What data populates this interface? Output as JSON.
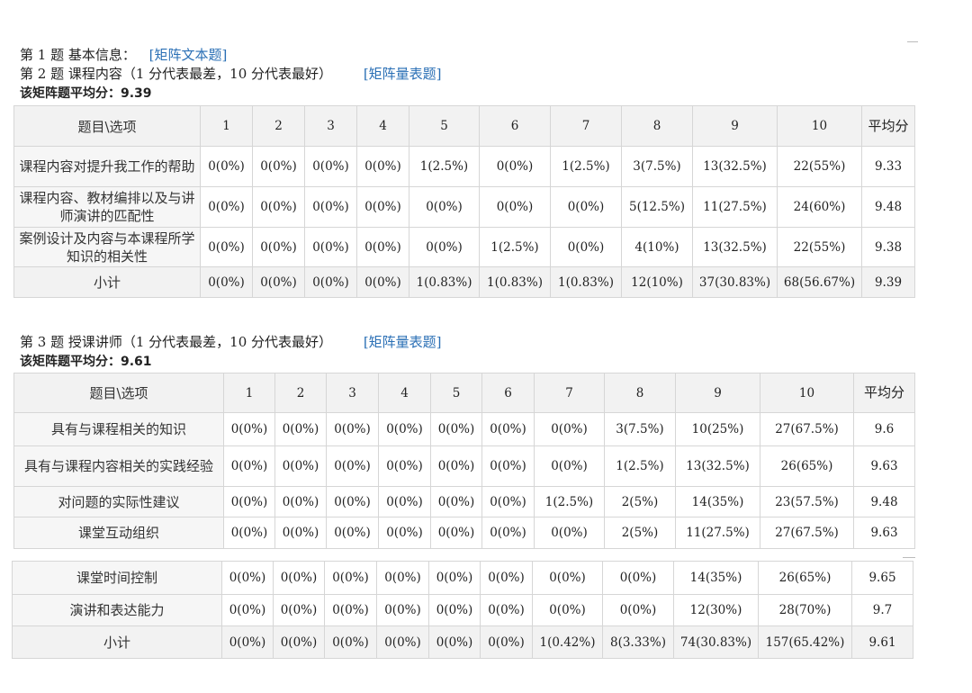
{
  "q1": {
    "text": "第 1 题  基本信息：",
    "link": "[矩阵文本题]"
  },
  "q2": {
    "text": "第 2 题  课程内容（1 分代表最差，10 分代表最好）",
    "link": "[矩阵量表题]",
    "avg_line": "该矩阵题平均分：9.39",
    "header": {
      "label": "题目\\选项",
      "options": [
        "1",
        "2",
        "3",
        "4",
        "5",
        "6",
        "7",
        "8",
        "9",
        "10"
      ],
      "avg": "平均分"
    },
    "rows": [
      {
        "label": "课程内容对提升我工作的帮助",
        "cells": [
          "0(0%)",
          "0(0%)",
          "0(0%)",
          "0(0%)",
          "1(2.5%)",
          "0(0%)",
          "1(2.5%)",
          "3(7.5%)",
          "13(32.5%)",
          "22(55%)"
        ],
        "avg": "9.33"
      },
      {
        "label": "课程内容、教材编排以及与讲师演讲的匹配性",
        "cells": [
          "0(0%)",
          "0(0%)",
          "0(0%)",
          "0(0%)",
          "0(0%)",
          "0(0%)",
          "0(0%)",
          "5(12.5%)",
          "11(27.5%)",
          "24(60%)"
        ],
        "avg": "9.48"
      },
      {
        "label": "案例设计及内容与本课程所学知识的相关性",
        "cells": [
          "0(0%)",
          "0(0%)",
          "0(0%)",
          "0(0%)",
          "0(0%)",
          "1(2.5%)",
          "0(0%)",
          "4(10%)",
          "13(32.5%)",
          "22(55%)"
        ],
        "avg": "9.38"
      }
    ],
    "subtotal": {
      "label": "小计",
      "cells": [
        "0(0%)",
        "0(0%)",
        "0(0%)",
        "0(0%)",
        "1(0.83%)",
        "1(0.83%)",
        "1(0.83%)",
        "12(10%)",
        "37(30.83%)",
        "68(56.67%)"
      ],
      "avg": "9.39"
    }
  },
  "q3": {
    "text": "第 3 题  授课讲师（1 分代表最差，10 分代表最好）",
    "link": "[矩阵量表题]",
    "avg_line": "该矩阵题平均分：9.61",
    "header": {
      "label": "题目\\选项",
      "options": [
        "1",
        "2",
        "3",
        "4",
        "5",
        "6",
        "7",
        "8",
        "9",
        "10"
      ],
      "avg": "平均分"
    },
    "rows_a": [
      {
        "label": "具有与课程相关的知识",
        "cells": [
          "0(0%)",
          "0(0%)",
          "0(0%)",
          "0(0%)",
          "0(0%)",
          "0(0%)",
          "0(0%)",
          "3(7.5%)",
          "10(25%)",
          "27(67.5%)"
        ],
        "avg": "9.6"
      },
      {
        "label": "具有与课程内容相关的实践经验",
        "cells": [
          "0(0%)",
          "0(0%)",
          "0(0%)",
          "0(0%)",
          "0(0%)",
          "0(0%)",
          "0(0%)",
          "1(2.5%)",
          "13(32.5%)",
          "26(65%)"
        ],
        "avg": "9.63"
      },
      {
        "label": "对问题的实际性建议",
        "cells": [
          "0(0%)",
          "0(0%)",
          "0(0%)",
          "0(0%)",
          "0(0%)",
          "0(0%)",
          "1(2.5%)",
          "2(5%)",
          "14(35%)",
          "23(57.5%)"
        ],
        "avg": "9.48"
      },
      {
        "label": "课堂互动组织",
        "cells": [
          "0(0%)",
          "0(0%)",
          "0(0%)",
          "0(0%)",
          "0(0%)",
          "0(0%)",
          "0(0%)",
          "2(5%)",
          "11(27.5%)",
          "27(67.5%)"
        ],
        "avg": "9.63"
      }
    ],
    "rows_b": [
      {
        "label": "课堂时间控制",
        "cells": [
          "0(0%)",
          "0(0%)",
          "0(0%)",
          "0(0%)",
          "0(0%)",
          "0(0%)",
          "0(0%)",
          "0(0%)",
          "14(35%)",
          "26(65%)"
        ],
        "avg": "9.65"
      },
      {
        "label": "演讲和表达能力",
        "cells": [
          "0(0%)",
          "0(0%)",
          "0(0%)",
          "0(0%)",
          "0(0%)",
          "0(0%)",
          "0(0%)",
          "0(0%)",
          "12(30%)",
          "28(70%)"
        ],
        "avg": "9.7"
      }
    ],
    "subtotal": {
      "label": "小计",
      "cells": [
        "0(0%)",
        "0(0%)",
        "0(0%)",
        "0(0%)",
        "0(0%)",
        "0(0%)",
        "1(0.42%)",
        "8(3.33%)",
        "74(30.83%)",
        "157(65.42%)"
      ],
      "avg": "9.61"
    }
  }
}
